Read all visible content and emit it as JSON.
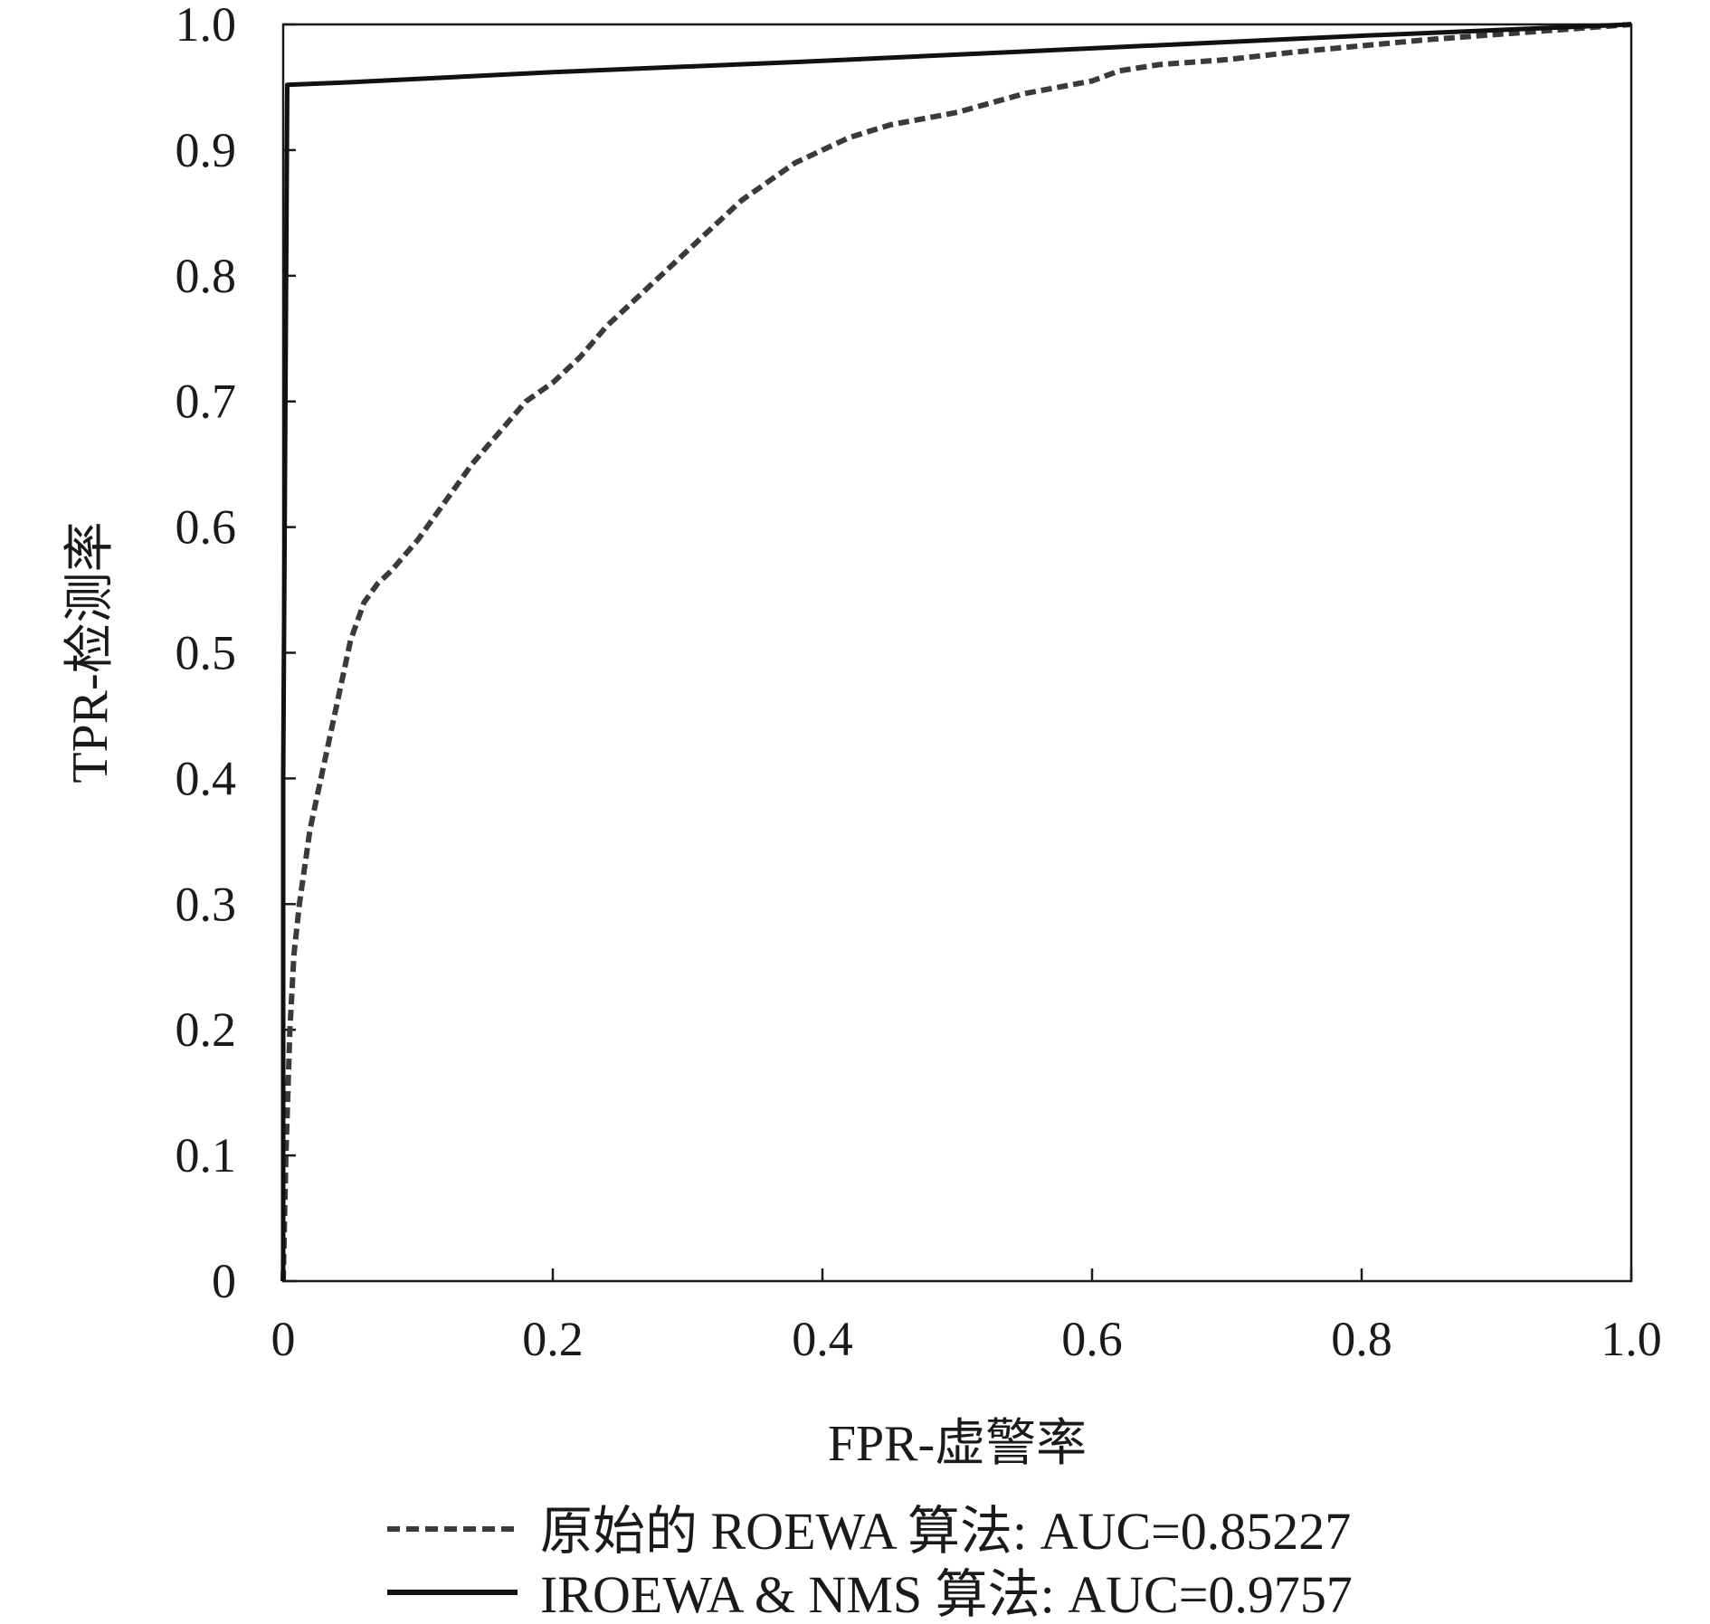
{
  "chart_data": {
    "type": "line",
    "xlabel": "FPR-虚警率",
    "ylabel": "TPR-检测率",
    "xlim": [
      0,
      1.0
    ],
    "ylim": [
      0,
      1.0
    ],
    "x_ticks": [
      "0",
      "0.2",
      "0.4",
      "0.6",
      "0.8",
      "1.0"
    ],
    "y_ticks": [
      "0",
      "0.1",
      "0.2",
      "0.3",
      "0.4",
      "0.5",
      "0.6",
      "0.7",
      "0.8",
      "0.9",
      "1.0"
    ],
    "grid": false,
    "legend_position": "bottom",
    "series": [
      {
        "name": "原始的 ROEWA 算法: AUC=0.85227",
        "style": "dashed",
        "color": "#3a3a3a",
        "x": [
          0,
          0.002,
          0.005,
          0.008,
          0.012,
          0.02,
          0.03,
          0.04,
          0.05,
          0.06,
          0.07,
          0.08,
          0.1,
          0.12,
          0.14,
          0.16,
          0.18,
          0.2,
          0.22,
          0.24,
          0.26,
          0.28,
          0.3,
          0.32,
          0.34,
          0.36,
          0.38,
          0.4,
          0.42,
          0.45,
          0.5,
          0.55,
          0.6,
          0.62,
          0.65,
          0.7,
          0.75,
          0.8,
          0.85,
          0.9,
          0.95,
          1.0
        ],
        "y": [
          0,
          0.1,
          0.2,
          0.26,
          0.3,
          0.36,
          0.41,
          0.46,
          0.51,
          0.54,
          0.555,
          0.565,
          0.59,
          0.62,
          0.65,
          0.675,
          0.7,
          0.715,
          0.735,
          0.76,
          0.78,
          0.8,
          0.82,
          0.84,
          0.86,
          0.875,
          0.89,
          0.9,
          0.91,
          0.92,
          0.93,
          0.945,
          0.955,
          0.963,
          0.968,
          0.972,
          0.978,
          0.983,
          0.988,
          0.992,
          0.996,
          1.0
        ]
      },
      {
        "name": "IROEWA & NMS 算法: AUC=0.9757",
        "style": "solid",
        "color": "#111111",
        "x": [
          0,
          0,
          0.003,
          0.05,
          0.2,
          0.4,
          0.6,
          0.8,
          1.0
        ],
        "y": [
          0,
          0.4,
          0.952,
          0.954,
          0.962,
          0.971,
          0.981,
          0.991,
          1.0
        ]
      }
    ]
  }
}
